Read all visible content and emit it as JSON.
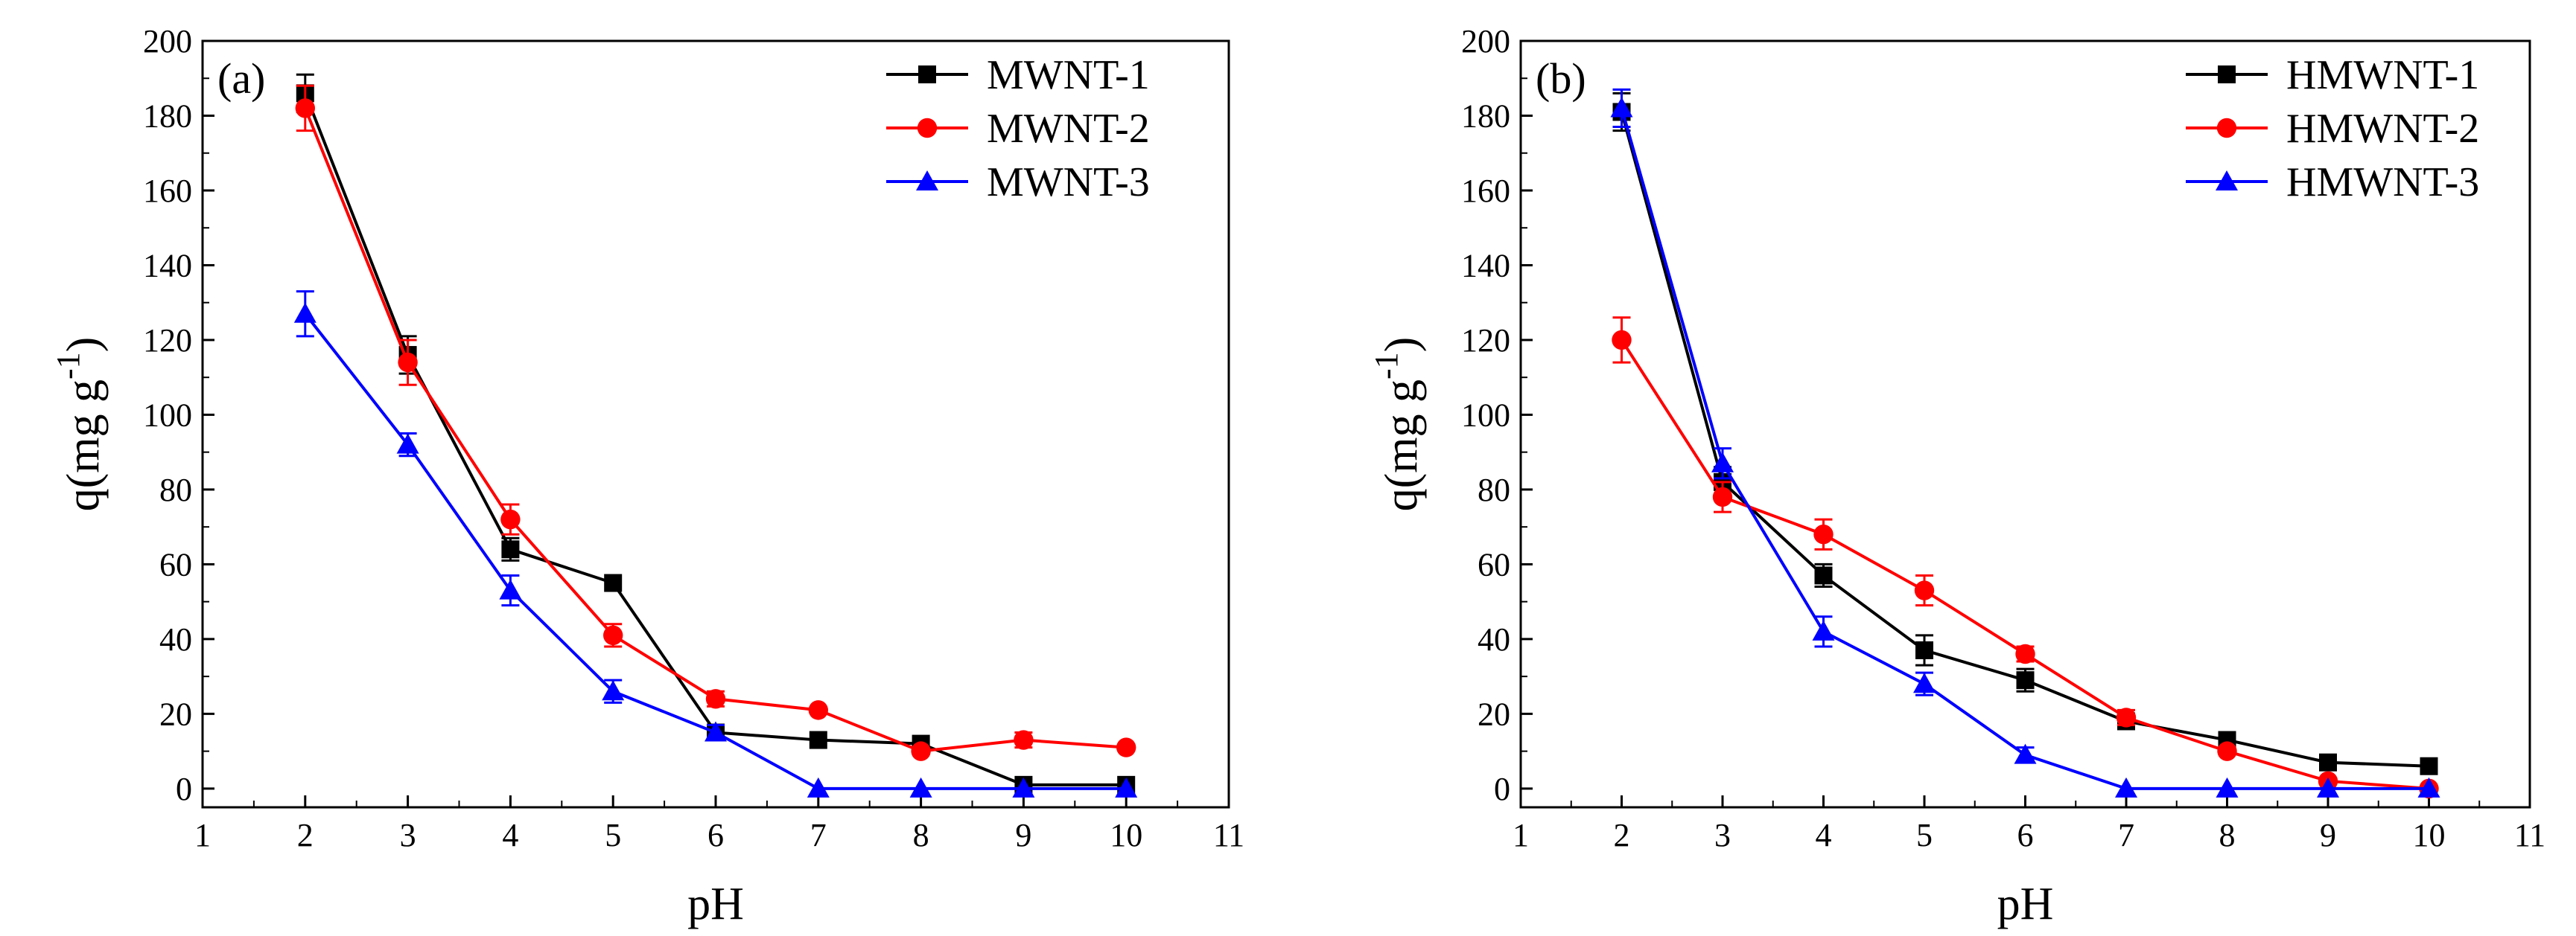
{
  "figure": {
    "description_present": false
  },
  "chart_data": [
    {
      "panel": "a",
      "type": "line",
      "panel_label": "(a)",
      "xlabel": "pH",
      "ylabel_main": "q(mg g",
      "ylabel_sup": "-1",
      "ylabel_close": ")",
      "xlim": [
        1,
        11
      ],
      "ylim": [
        -5,
        200
      ],
      "xticks": [
        1,
        2,
        3,
        4,
        5,
        6,
        7,
        8,
        9,
        10,
        11
      ],
      "yticks": [
        0,
        20,
        40,
        60,
        80,
        100,
        120,
        140,
        160,
        180,
        200
      ],
      "grid": false,
      "legend_position": "top-right",
      "x": [
        2,
        3,
        4,
        5,
        6,
        7,
        8,
        9,
        10
      ],
      "series": [
        {
          "name": "MWNT-1",
          "color": "#000000",
          "marker": "square",
          "values": [
            186,
            116,
            64,
            55,
            15,
            13,
            12,
            1,
            1
          ],
          "errors": [
            5,
            5,
            3,
            0,
            2,
            0,
            0,
            0,
            0
          ]
        },
        {
          "name": "MWNT-2",
          "color": "#ff0000",
          "marker": "circle",
          "values": [
            182,
            114,
            72,
            41,
            24,
            21,
            10,
            13,
            11
          ],
          "errors": [
            6,
            6,
            4,
            3,
            2,
            0,
            0,
            2,
            0
          ]
        },
        {
          "name": "MWNT-3",
          "color": "#0000ff",
          "marker": "triangle",
          "values": [
            127,
            92,
            53,
            26,
            15,
            0,
            0,
            0,
            0
          ],
          "errors": [
            6,
            3,
            4,
            3,
            2,
            0,
            0,
            0,
            0
          ]
        }
      ]
    },
    {
      "panel": "b",
      "type": "line",
      "panel_label": "(b)",
      "xlabel": "pH",
      "ylabel_main": "q(mg g",
      "ylabel_sup": "-1",
      "ylabel_close": ")",
      "xlim": [
        1,
        11
      ],
      "ylim": [
        -5,
        200
      ],
      "xticks": [
        1,
        2,
        3,
        4,
        5,
        6,
        7,
        8,
        9,
        10,
        11
      ],
      "yticks": [
        0,
        20,
        40,
        60,
        80,
        100,
        120,
        140,
        160,
        180,
        200
      ],
      "grid": false,
      "legend_position": "top-right",
      "x": [
        2,
        3,
        4,
        5,
        6,
        7,
        8,
        9,
        10
      ],
      "series": [
        {
          "name": "HMWNT-1",
          "color": "#000000",
          "marker": "square",
          "values": [
            181,
            82,
            57,
            37,
            29,
            18,
            13,
            7,
            6
          ],
          "errors": [
            5,
            4,
            3,
            4,
            3,
            0,
            0,
            0,
            0
          ]
        },
        {
          "name": "HMWNT-2",
          "color": "#ff0000",
          "marker": "circle",
          "values": [
            120,
            78,
            68,
            53,
            36,
            19,
            10,
            2,
            0
          ],
          "errors": [
            6,
            4,
            4,
            4,
            2,
            2,
            0,
            0,
            0
          ]
        },
        {
          "name": "HMWNT-3",
          "color": "#0000ff",
          "marker": "triangle",
          "values": [
            182,
            87,
            42,
            28,
            9,
            0,
            0,
            0,
            0
          ],
          "errors": [
            5,
            4,
            4,
            3,
            2,
            0,
            0,
            0,
            0
          ]
        }
      ]
    }
  ]
}
